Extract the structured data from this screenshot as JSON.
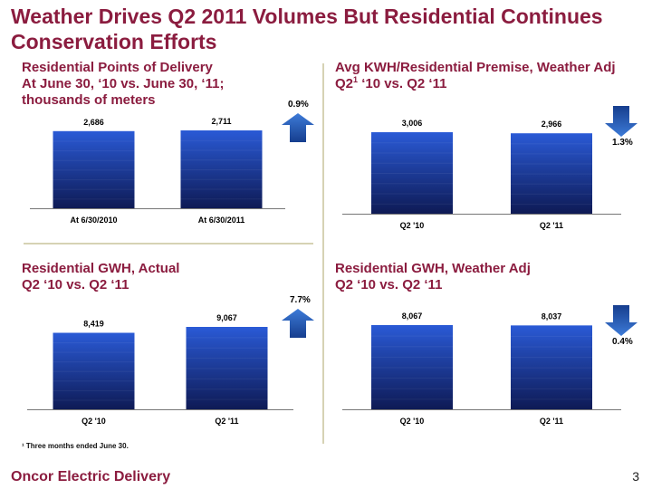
{
  "slide": {
    "title_line1": "Weather Drives Q2 2011 Volumes But Residential Continues",
    "title_line2": "Conservation Efforts",
    "footnote": "¹ Three months ended June 30.",
    "footer": "Oncor Electric Delivery",
    "page_number": "3"
  },
  "colors": {
    "title": "#8b1c3f",
    "bar_top": "#2a5ad6",
    "bar_bottom": "#0e1a55",
    "arrow": "#1f4fa8",
    "divider": "#d6d2b4"
  },
  "panels": [
    {
      "title_lines": [
        "Residential Points of Delivery",
        "At June 30, ‘10 vs. June 30, ‘11;",
        "thousands of meters"
      ],
      "change": {
        "text": "0.9%",
        "direction": "up"
      }
    },
    {
      "title_lines": [
        "Avg KWH/Residential Premise, Weather Adj",
        "Q2",
        "1",
        " ‘10 vs. Q2 ‘11"
      ],
      "change": {
        "text": "1.3%",
        "direction": "down"
      }
    },
    {
      "title_lines": [
        "Residential GWH, Actual",
        "Q2 ‘10 vs. Q2 ‘11"
      ],
      "change": {
        "text": "7.7%",
        "direction": "up"
      }
    },
    {
      "title_lines": [
        "Residential GWH, Weather Adj",
        "Q2 ‘10 vs. Q2 ‘11"
      ],
      "change": {
        "text": "0.4%",
        "direction": "down"
      }
    }
  ],
  "chart_data": [
    {
      "type": "bar",
      "categories": [
        "At 6/30/2010",
        "At 6/30/2011"
      ],
      "values": [
        2686,
        2711
      ],
      "value_labels": [
        "2,686",
        "2,711"
      ],
      "ylim": [
        0,
        2711
      ]
    },
    {
      "type": "bar",
      "categories": [
        "Q2 '10",
        "Q2 '11"
      ],
      "values": [
        3006,
        2966
      ],
      "value_labels": [
        "3,006",
        "2,966"
      ],
      "ylim": [
        0,
        3006
      ]
    },
    {
      "type": "bar",
      "categories": [
        "Q2 '10",
        "Q2 '11"
      ],
      "values": [
        8419,
        9067
      ],
      "value_labels": [
        "8,419",
        "9,067"
      ],
      "ylim": [
        0,
        9067
      ]
    },
    {
      "type": "bar",
      "categories": [
        "Q2 '10",
        "Q2 '11"
      ],
      "values": [
        8067,
        8037
      ],
      "value_labels": [
        "8,067",
        "8,037"
      ],
      "ylim": [
        0,
        8067
      ]
    }
  ]
}
